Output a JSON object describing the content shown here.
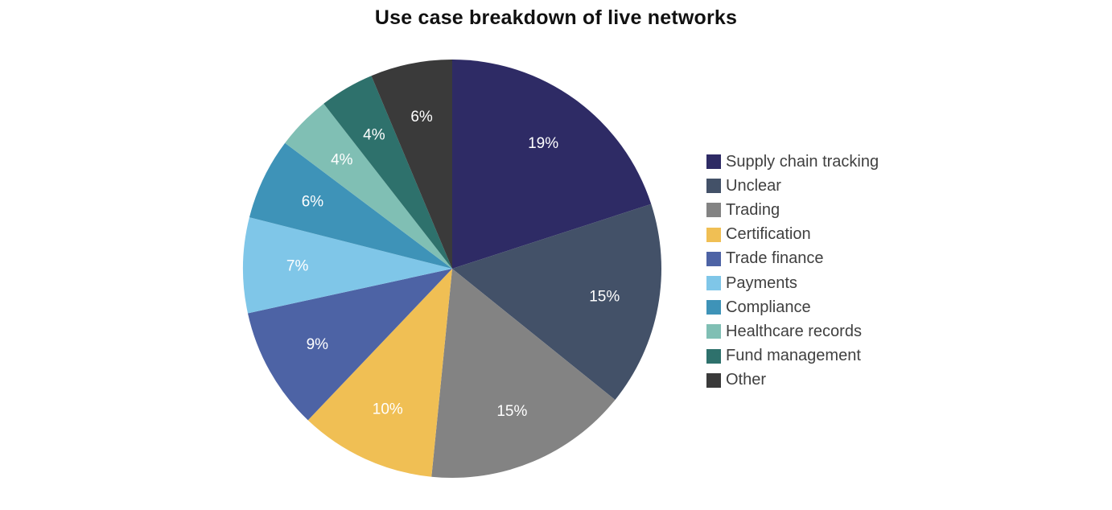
{
  "chart_data": {
    "type": "pie",
    "title": "Use case breakdown of live networks",
    "legend_position": "right",
    "start_angle": "12 o'clock",
    "direction": "clockwise",
    "slices": [
      {
        "label": "Supply chain tracking",
        "value": 19,
        "display": "19%",
        "color": "#2e2b65"
      },
      {
        "label": "Unclear",
        "value": 15,
        "display": "15%",
        "color": "#435168"
      },
      {
        "label": "Trading",
        "value": 15,
        "display": "15%",
        "color": "#838383"
      },
      {
        "label": "Certification",
        "value": 10,
        "display": "10%",
        "color": "#f0bf54"
      },
      {
        "label": "Trade finance",
        "value": 9,
        "display": "9%",
        "color": "#4d63a5"
      },
      {
        "label": "Payments",
        "value": 7,
        "display": "7%",
        "color": "#7fc6e8"
      },
      {
        "label": "Compliance",
        "value": 6,
        "display": "6%",
        "color": "#3e93b8"
      },
      {
        "label": "Healthcare records",
        "value": 4,
        "display": "4%",
        "color": "#80bfb4"
      },
      {
        "label": "Fund management",
        "value": 4,
        "display": "4%",
        "color": "#2e716c"
      },
      {
        "label": "Other",
        "value": 6,
        "display": "6%",
        "color": "#3a3a3a"
      }
    ]
  }
}
